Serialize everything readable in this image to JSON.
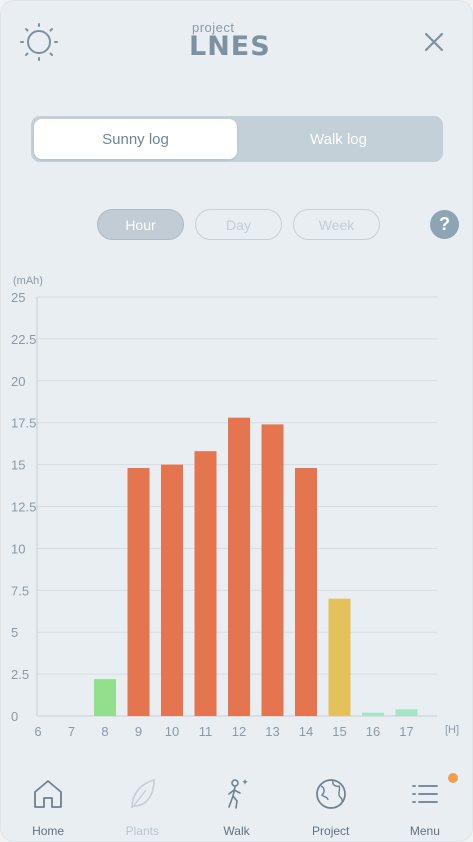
{
  "header": {
    "logo_small": "project",
    "logo_big": "LNES"
  },
  "segment": {
    "items": [
      "Sunny log",
      "Walk log"
    ],
    "active": 0
  },
  "period": {
    "items": [
      "Hour",
      "Day",
      "Week"
    ],
    "active": 0,
    "help_label": "?"
  },
  "chart_data": {
    "type": "bar",
    "unit_label": "(mAh)",
    "x_unit_label": "[H]",
    "categories": [
      "6",
      "7",
      "8",
      "9",
      "10",
      "11",
      "12",
      "13",
      "14",
      "15",
      "16",
      "17"
    ],
    "values": [
      0,
      0,
      2.2,
      14.8,
      15.0,
      15.8,
      17.8,
      17.4,
      14.8,
      7.0,
      0.2,
      0.4
    ],
    "colors": [
      "#92e08c",
      "#92e08c",
      "#92e08c",
      "#e5754f",
      "#e5754f",
      "#e5754f",
      "#e5754f",
      "#e5754f",
      "#e5754f",
      "#e5c15c",
      "#a6e4c8",
      "#a6e4c8"
    ],
    "yticks": [
      "0",
      "2.5",
      "5",
      "7.5",
      "10",
      "12.5",
      "15",
      "17.5",
      "20",
      "22.5",
      "25"
    ],
    "ylim": [
      0,
      25
    ],
    "grid": true
  },
  "tabbar": {
    "items": [
      {
        "label": "Home",
        "icon": "home-icon",
        "enabled": true
      },
      {
        "label": "Plants",
        "icon": "leaf-icon",
        "enabled": false
      },
      {
        "label": "Walk",
        "icon": "walk-icon",
        "enabled": true
      },
      {
        "label": "Project",
        "icon": "globe-icon",
        "enabled": true
      },
      {
        "label": "Menu",
        "icon": "menu-icon",
        "enabled": true,
        "badge": true
      }
    ]
  },
  "colors": {
    "accent": "#8da4b5",
    "bar_high": "#e5754f",
    "bar_mid": "#e5c15c",
    "bar_low": "#92e08c",
    "bar_faint": "#a6e4c8",
    "badge": "#f0a04b"
  }
}
